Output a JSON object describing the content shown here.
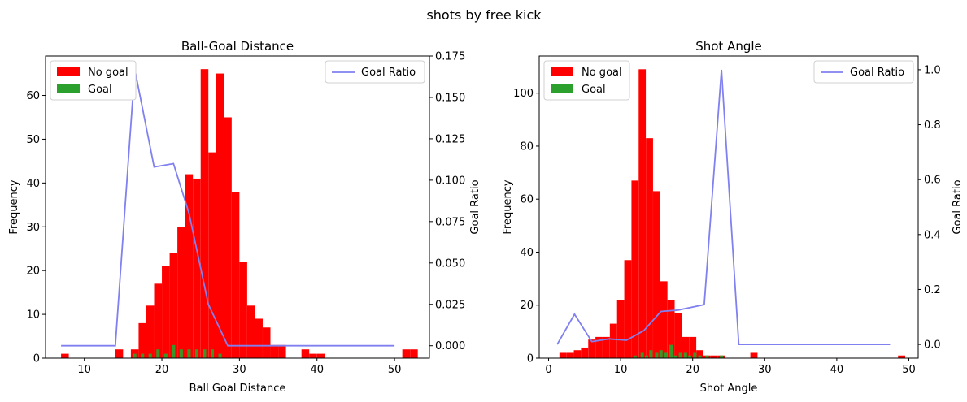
{
  "figure": {
    "suptitle": "shots by free kick"
  },
  "legend_labels": {
    "no_goal": "No goal",
    "goal": "Goal",
    "ratio": "Goal Ratio"
  },
  "colors": {
    "no_goal": "#ff0000",
    "goal": "#2ca02c",
    "ratio": "#8080f0"
  },
  "chart_data": [
    {
      "type": "bar",
      "title": "Ball-Goal Distance",
      "xlabel": "Ball Goal Distance",
      "ylabel": "Frequency",
      "y2label": "Goal Ratio",
      "xlim": [
        5.0,
        54.5
      ],
      "ylim": [
        0,
        69
      ],
      "y2lim": [
        -0.0075,
        0.175
      ],
      "xticks": [
        10,
        20,
        30,
        40,
        50
      ],
      "yticks": [
        0,
        10,
        20,
        30,
        40,
        50,
        60
      ],
      "y2ticks": [
        "0.000",
        "0.025",
        "0.050",
        "0.075",
        "0.100",
        "0.125",
        "0.150",
        "0.175"
      ],
      "legend_left": "upper-left",
      "legend_right": "upper-right",
      "series": [
        {
          "name": "No goal",
          "x": [
            7.5,
            14.5,
            16.5,
            17.5,
            18.5,
            19.5,
            20.5,
            21.5,
            22.5,
            23.5,
            24.5,
            25.5,
            26.5,
            27.5,
            28.5,
            29.5,
            30.5,
            31.5,
            32.5,
            33.5,
            34.5,
            35.5,
            38.5,
            39.5,
            40.5,
            51.5,
            52.5
          ],
          "values": [
            1,
            2,
            2,
            8,
            12,
            17,
            21,
            24,
            30,
            42,
            41,
            66,
            47,
            65,
            55,
            38,
            22,
            12,
            9,
            7,
            3,
            3,
            2,
            1,
            1,
            2,
            2
          ]
        },
        {
          "name": "Goal",
          "x": [
            16.5,
            17.5,
            18.5,
            19.5,
            20.5,
            21.5,
            22.5,
            23.5,
            24.5,
            25.5,
            26.5,
            27.5
          ],
          "values": [
            1,
            1,
            1,
            2,
            1,
            3,
            2,
            2,
            2,
            2,
            2,
            1
          ]
        },
        {
          "name": "Goal Ratio",
          "x": [
            7,
            14,
            16.5,
            19,
            21.5,
            23.5,
            26,
            28.5,
            30,
            35,
            40,
            45,
            50
          ],
          "values": [
            0,
            0,
            0.167,
            0.108,
            0.11,
            0.08,
            0.025,
            0,
            0,
            0,
            0,
            0,
            0
          ]
        }
      ]
    },
    {
      "type": "bar",
      "title": "Shot Angle",
      "xlabel": "Shot Angle",
      "ylabel": "Frequency",
      "y2label": "Goal Ratio",
      "xlim": [
        -1.3,
        51.3
      ],
      "ylim": [
        0,
        114
      ],
      "y2lim": [
        -0.05,
        1.05
      ],
      "xticks": [
        0,
        10,
        20,
        30,
        40,
        50
      ],
      "yticks": [
        0,
        20,
        40,
        60,
        80,
        100
      ],
      "y2ticks": [
        "0.0",
        "0.2",
        "0.4",
        "0.6",
        "0.8",
        "1.0"
      ],
      "legend_left": "upper-left",
      "legend_right": "upper-right",
      "series": [
        {
          "name": "No goal",
          "x": [
            2,
            3,
            4,
            5,
            6,
            7,
            8,
            9,
            10,
            11,
            12,
            13,
            14,
            15,
            16,
            17,
            18,
            19,
            20,
            21,
            22,
            23,
            24,
            28.5,
            49
          ],
          "values": [
            2,
            2,
            3,
            4,
            7,
            8,
            8,
            13,
            22,
            37,
            67,
            109,
            83,
            63,
            29,
            22,
            17,
            8,
            8,
            3,
            1,
            1,
            1,
            2,
            1
          ]
        },
        {
          "name": "Goal",
          "x": [
            12,
            13,
            13.6,
            14.2,
            15,
            15.6,
            16.3,
            17,
            17.6,
            18.3,
            19,
            19.6,
            20.3,
            21,
            22,
            24
          ],
          "values": [
            1,
            2,
            1,
            3,
            2,
            3,
            2,
            5,
            1,
            2,
            2,
            1,
            2,
            1,
            1,
            1
          ]
        },
        {
          "name": "Goal Ratio",
          "x": [
            1.2,
            3.6,
            6,
            8.4,
            10.8,
            13.2,
            15.6,
            18,
            21.6,
            24,
            26.4,
            30,
            35,
            40,
            47.4
          ],
          "values": [
            0,
            0.11,
            0.01,
            0.02,
            0.015,
            0.05,
            0.12,
            0.125,
            0.145,
            1.0,
            0,
            0,
            0,
            0,
            0
          ]
        }
      ]
    }
  ]
}
